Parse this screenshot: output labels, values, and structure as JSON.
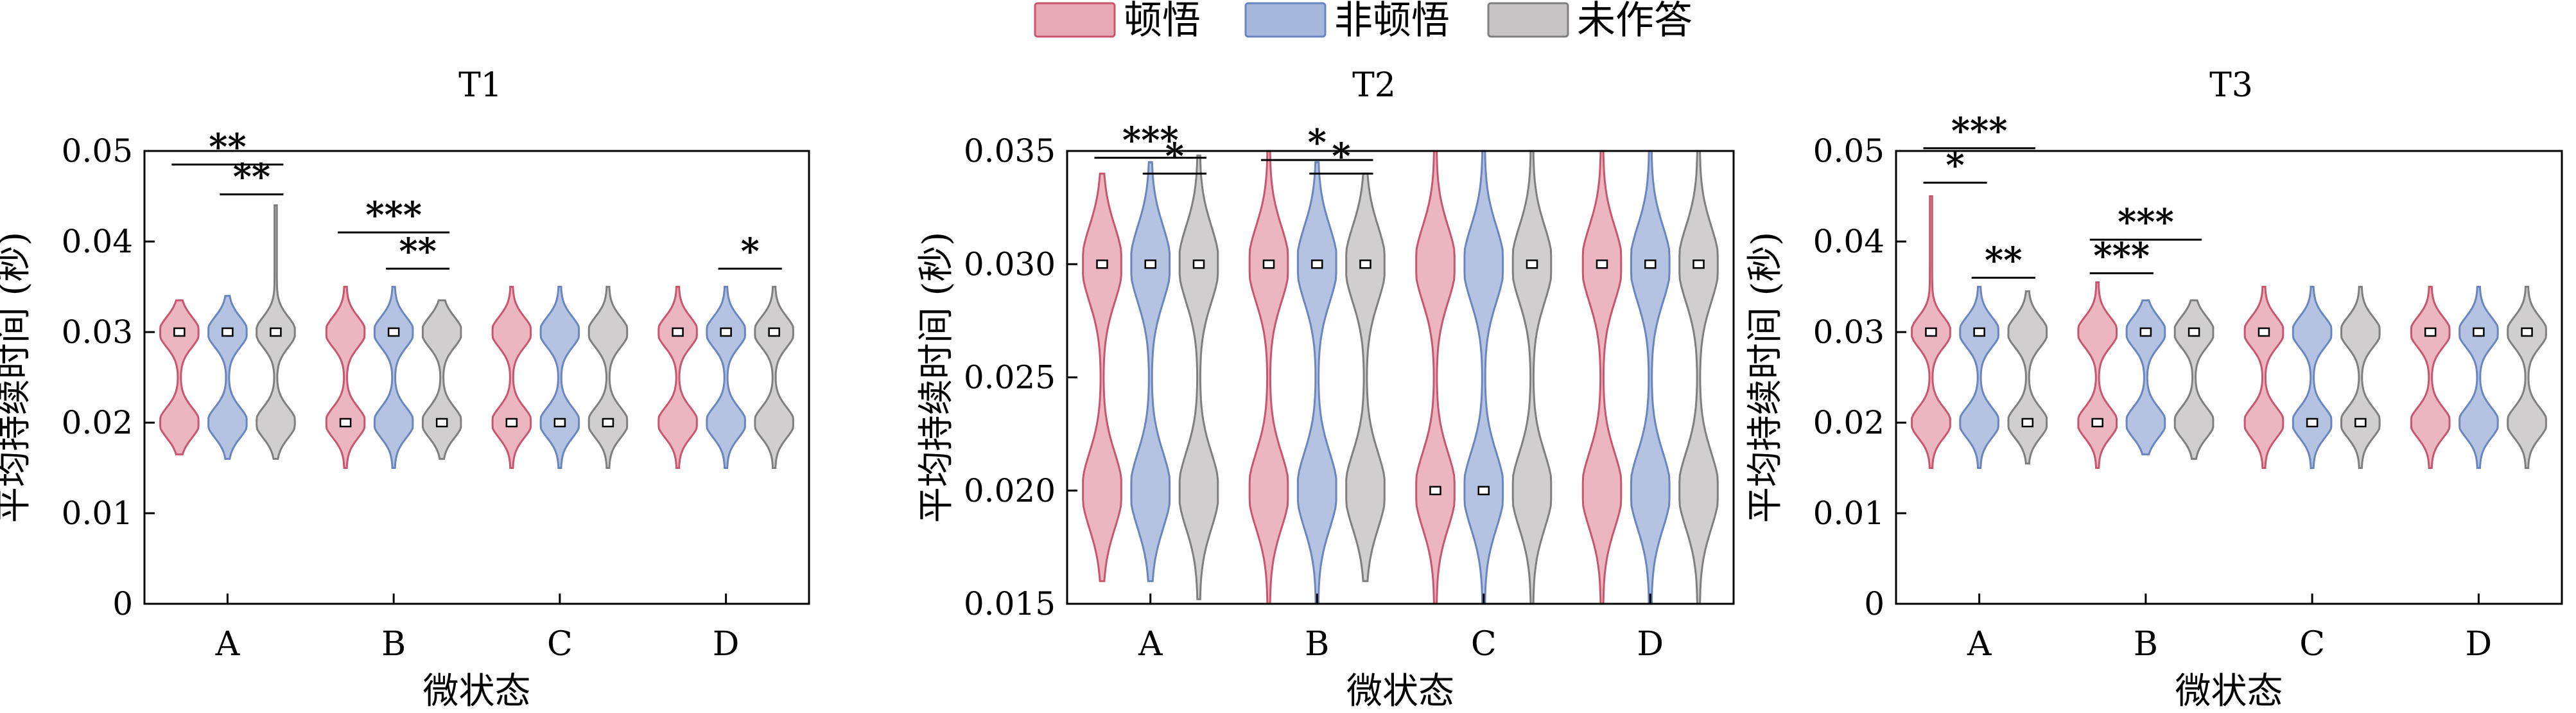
{
  "legend": {
    "items": [
      {
        "label": "顿悟",
        "color": "#c8566e"
      },
      {
        "label": "非顿悟",
        "color": "#6b86bf"
      },
      {
        "label": "未作答",
        "color": "#7f7f7f"
      }
    ]
  },
  "chart_data": [
    {
      "type": "violin",
      "title": "T1",
      "xlabel": "微状态",
      "ylabel": "平均持续时间 (秒)",
      "categories": [
        "A",
        "B",
        "C",
        "D"
      ],
      "ylim": [
        0,
        0.05
      ],
      "yticks": [
        0,
        0.01,
        0.02,
        0.03,
        0.04,
        0.05
      ],
      "ytick_labels": [
        "0",
        "0.01",
        "0.02",
        "0.03",
        "0.04",
        "0.05"
      ],
      "series": [
        {
          "name": "顿悟",
          "groups": [
            {
              "range": [
                0.0165,
                0.0335
              ],
              "modes": [
                0.02,
                0.03
              ],
              "median": 0.03
            },
            {
              "range": [
                0.015,
                0.035
              ],
              "modes": [
                0.02,
                0.03
              ],
              "median": 0.02
            },
            {
              "range": [
                0.015,
                0.035
              ],
              "modes": [
                0.02,
                0.03
              ],
              "median": 0.02
            },
            {
              "range": [
                0.015,
                0.035
              ],
              "modes": [
                0.02,
                0.03
              ],
              "median": 0.03
            }
          ]
        },
        {
          "name": "非顿悟",
          "groups": [
            {
              "range": [
                0.016,
                0.034
              ],
              "modes": [
                0.02,
                0.03
              ],
              "median": 0.03
            },
            {
              "range": [
                0.015,
                0.035
              ],
              "modes": [
                0.02,
                0.03
              ],
              "median": 0.03
            },
            {
              "range": [
                0.015,
                0.035
              ],
              "modes": [
                0.02,
                0.03
              ],
              "median": 0.02
            },
            {
              "range": [
                0.015,
                0.035
              ],
              "modes": [
                0.02,
                0.03
              ],
              "median": 0.03
            }
          ]
        },
        {
          "name": "未作答",
          "groups": [
            {
              "range": [
                0.016,
                0.044
              ],
              "modes": [
                0.02,
                0.03
              ],
              "median": 0.03
            },
            {
              "range": [
                0.016,
                0.0335
              ],
              "modes": [
                0.02,
                0.03
              ],
              "median": 0.02
            },
            {
              "range": [
                0.015,
                0.035
              ],
              "modes": [
                0.02,
                0.03
              ],
              "median": 0.02
            },
            {
              "range": [
                0.015,
                0.035
              ],
              "modes": [
                0.02,
                0.03
              ],
              "median": 0.03
            }
          ]
        }
      ],
      "significance": [
        {
          "category": "A",
          "from": 0,
          "to": 2,
          "label": "**",
          "y": 0.0485
        },
        {
          "category": "A",
          "from": 1,
          "to": 2,
          "label": "**",
          "y": 0.0452
        },
        {
          "category": "B",
          "from": 0,
          "to": 2,
          "label": "***",
          "y": 0.041
        },
        {
          "category": "B",
          "from": 1,
          "to": 2,
          "label": "**",
          "y": 0.037
        },
        {
          "category": "D",
          "from": 1,
          "to": 2,
          "label": "*",
          "y": 0.037
        }
      ]
    },
    {
      "type": "violin",
      "title": "T2",
      "xlabel": "微状态",
      "ylabel": "平均持续时间 (秒)",
      "categories": [
        "A",
        "B",
        "C",
        "D"
      ],
      "ylim": [
        0.015,
        0.035
      ],
      "yticks": [
        0.015,
        0.02,
        0.025,
        0.03,
        0.035
      ],
      "ytick_labels": [
        "0.015",
        "0.020",
        "0.025",
        "0.030",
        "0.035"
      ],
      "series": [
        {
          "name": "顿悟",
          "groups": [
            {
              "range": [
                0.016,
                0.034
              ],
              "modes": [
                0.02,
                0.03
              ],
              "median": 0.03
            },
            {
              "range": [
                0.015,
                0.035
              ],
              "modes": [
                0.02,
                0.03
              ],
              "median": 0.03
            },
            {
              "range": [
                0.015,
                0.035
              ],
              "modes": [
                0.02,
                0.03
              ],
              "median": 0.02
            },
            {
              "range": [
                0.015,
                0.035
              ],
              "modes": [
                0.02,
                0.03
              ],
              "median": 0.03
            }
          ]
        },
        {
          "name": "非顿悟",
          "groups": [
            {
              "range": [
                0.016,
                0.0345
              ],
              "modes": [
                0.02,
                0.03
              ],
              "median": 0.03
            },
            {
              "range": [
                0.015,
                0.0345
              ],
              "modes": [
                0.02,
                0.03
              ],
              "median": 0.03
            },
            {
              "range": [
                0.015,
                0.035
              ],
              "modes": [
                0.02,
                0.03
              ],
              "median": 0.02
            },
            {
              "range": [
                0.015,
                0.035
              ],
              "modes": [
                0.02,
                0.03
              ],
              "median": 0.03
            }
          ]
        },
        {
          "name": "未作答",
          "groups": [
            {
              "range": [
                0.0152,
                0.0348
              ],
              "modes": [
                0.02,
                0.03
              ],
              "median": 0.03
            },
            {
              "range": [
                0.016,
                0.034
              ],
              "modes": [
                0.02,
                0.03
              ],
              "median": 0.03
            },
            {
              "range": [
                0.015,
                0.035
              ],
              "modes": [
                0.02,
                0.03
              ],
              "median": 0.03
            },
            {
              "range": [
                0.015,
                0.035
              ],
              "modes": [
                0.02,
                0.03
              ],
              "median": 0.03
            }
          ]
        }
      ],
      "significance": [
        {
          "category": "A",
          "from": 0,
          "to": 2,
          "label": "***",
          "y": 0.0347
        },
        {
          "category": "A",
          "from": 1,
          "to": 2,
          "label": "*",
          "y": 0.034
        },
        {
          "category": "B",
          "from": 0,
          "to": 2,
          "label": "*",
          "y": 0.0346
        },
        {
          "category": "B",
          "from": 1,
          "to": 2,
          "label": "*",
          "y": 0.034
        }
      ]
    },
    {
      "type": "violin",
      "title": "T3",
      "xlabel": "微状态",
      "ylabel": "平均持续时间 (秒)",
      "categories": [
        "A",
        "B",
        "C",
        "D"
      ],
      "ylim": [
        0,
        0.05
      ],
      "yticks": [
        0,
        0.01,
        0.02,
        0.03,
        0.04,
        0.05
      ],
      "ytick_labels": [
        "0",
        "0.01",
        "0.02",
        "0.03",
        "0.04",
        "0.05"
      ],
      "series": [
        {
          "name": "顿悟",
          "groups": [
            {
              "range": [
                0.015,
                0.045
              ],
              "modes": [
                0.02,
                0.03
              ],
              "median": 0.03
            },
            {
              "range": [
                0.015,
                0.0355
              ],
              "modes": [
                0.02,
                0.03
              ],
              "median": 0.02
            },
            {
              "range": [
                0.015,
                0.035
              ],
              "modes": [
                0.02,
                0.03
              ],
              "median": 0.03
            },
            {
              "range": [
                0.015,
                0.035
              ],
              "modes": [
                0.02,
                0.03
              ],
              "median": 0.03
            }
          ]
        },
        {
          "name": "非顿悟",
          "groups": [
            {
              "range": [
                0.015,
                0.035
              ],
              "modes": [
                0.02,
                0.03
              ],
              "median": 0.03
            },
            {
              "range": [
                0.0165,
                0.0335
              ],
              "modes": [
                0.02,
                0.03
              ],
              "median": 0.03
            },
            {
              "range": [
                0.015,
                0.035
              ],
              "modes": [
                0.02,
                0.03
              ],
              "median": 0.02
            },
            {
              "range": [
                0.015,
                0.035
              ],
              "modes": [
                0.02,
                0.03
              ],
              "median": 0.03
            }
          ]
        },
        {
          "name": "未作答",
          "groups": [
            {
              "range": [
                0.0155,
                0.0345
              ],
              "modes": [
                0.02,
                0.03
              ],
              "median": 0.02
            },
            {
              "range": [
                0.016,
                0.0335
              ],
              "modes": [
                0.02,
                0.03
              ],
              "median": 0.03
            },
            {
              "range": [
                0.015,
                0.035
              ],
              "modes": [
                0.02,
                0.03
              ],
              "median": 0.02
            },
            {
              "range": [
                0.015,
                0.035
              ],
              "modes": [
                0.02,
                0.03
              ],
              "median": 0.03
            }
          ]
        }
      ],
      "significance": [
        {
          "category": "A",
          "from": 0,
          "to": 2,
          "label": "***",
          "y": 0.0503
        },
        {
          "category": "A",
          "from": 0,
          "to": 1,
          "label": "*",
          "y": 0.0465
        },
        {
          "category": "A",
          "from": 1,
          "to": 2,
          "label": "**",
          "y": 0.036
        },
        {
          "category": "B",
          "from": 0,
          "to": 2,
          "label": "***",
          "y": 0.0402
        },
        {
          "category": "B",
          "from": 0,
          "to": 1,
          "label": "***",
          "y": 0.0365
        }
      ]
    }
  ]
}
